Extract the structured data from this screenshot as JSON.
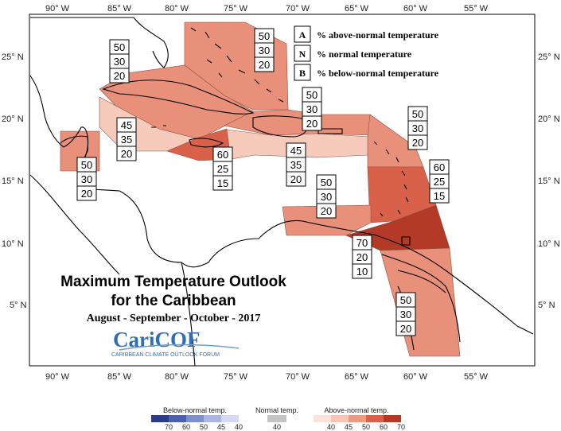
{
  "map": {
    "title_line1": "Maximum Temperature Outlook",
    "title_line2": "for the Caribbean",
    "season": "August - September - October - 2017",
    "logo_text": "CariCOF",
    "logo_subtitle": "CARIBBEAN CLIMATE OUTLOOK FORUM",
    "lon_ticks": [
      "90° W",
      "85° W",
      "80° W",
      "75° W",
      "70° W",
      "65° W",
      "60° W",
      "55° W"
    ],
    "lat_ticks": [
      "25° N",
      "20° N",
      "15° N",
      "10° N",
      "5° N"
    ],
    "key": [
      {
        "letter": "A",
        "text": "% above-normal temperature"
      },
      {
        "letter": "N",
        "text": "% normal temperature"
      },
      {
        "letter": "B",
        "text": "% below-normal temperature"
      }
    ],
    "regions": [
      {
        "name": "bahamas",
        "above": "50",
        "normal": "30",
        "below": "20",
        "color": "#e8907a"
      },
      {
        "name": "cuba",
        "above": "50",
        "normal": "30",
        "below": "20",
        "color": "#e8907a"
      },
      {
        "name": "belize",
        "above": "50",
        "normal": "30",
        "below": "20",
        "color": "#e8907a"
      },
      {
        "name": "cayman",
        "above": "45",
        "normal": "35",
        "below": "20",
        "color": "#f7cbbc"
      },
      {
        "name": "jamaica",
        "above": "60",
        "normal": "25",
        "below": "15",
        "color": "#d9614a"
      },
      {
        "name": "hispaniola-north",
        "above": "50",
        "normal": "30",
        "below": "20",
        "color": "#e8907a"
      },
      {
        "name": "hispaniola-south",
        "above": "45",
        "normal": "35",
        "below": "20",
        "color": "#f7cbbc"
      },
      {
        "name": "leeward-islands",
        "above": "50",
        "normal": "30",
        "below": "20",
        "color": "#e8907a"
      },
      {
        "name": "windward-islands",
        "above": "60",
        "normal": "25",
        "below": "15",
        "color": "#d9614a"
      },
      {
        "name": "abc-islands",
        "above": "50",
        "normal": "30",
        "below": "20",
        "color": "#e8907a"
      },
      {
        "name": "trinidad",
        "above": "70",
        "normal": "20",
        "below": "10",
        "color": "#b33a26"
      },
      {
        "name": "guianas",
        "above": "50",
        "normal": "30",
        "below": "20",
        "color": "#e8907a"
      }
    ]
  },
  "colorbar": {
    "below": {
      "label": "Below-normal temp.",
      "ticks": [
        "70",
        "60",
        "50",
        "45",
        "40"
      ],
      "colors": [
        "#2b3a8a",
        "#4d5fb0",
        "#7f8fcc",
        "#aab5e0",
        "#d5daf2"
      ]
    },
    "normal": {
      "label": "Normal temp.",
      "ticks": [
        "40"
      ],
      "colors": [
        "#c4c4c4"
      ]
    },
    "above": {
      "label": "Above-normal temp.",
      "ticks": [
        "40",
        "45",
        "50",
        "60",
        "70"
      ],
      "colors": [
        "#fbe3da",
        "#f7c6b5",
        "#ec9a82",
        "#d9614a",
        "#b33a26"
      ]
    }
  }
}
